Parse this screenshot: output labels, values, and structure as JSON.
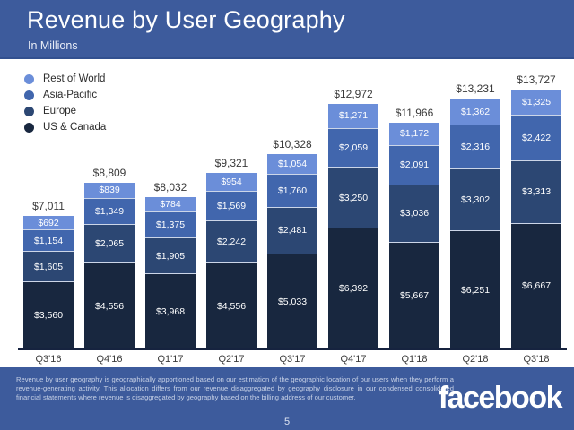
{
  "header": {
    "title": "Revenue by User Geography",
    "subtitle": "In Millions"
  },
  "legend": [
    {
      "label": "Rest of World",
      "color": "#6b8ed9"
    },
    {
      "label": "Asia-Pacific",
      "color": "#4166ad"
    },
    {
      "label": "Europe",
      "color": "#2c4773"
    },
    {
      "label": "US & Canada",
      "color": "#18273f"
    }
  ],
  "chart_data": {
    "type": "bar",
    "stacked": true,
    "title": "Revenue by User Geography",
    "subtitle": "In Millions",
    "unit": "USD millions",
    "value_prefix": "$",
    "grid": false,
    "legend_position": "top-left",
    "categories": [
      "Q3'16",
      "Q4'16",
      "Q1'17",
      "Q2'17",
      "Q3'17",
      "Q4'17",
      "Q1'18",
      "Q2'18",
      "Q3'18"
    ],
    "series": [
      {
        "name": "US & Canada",
        "color": "#18273f",
        "values": [
          3560,
          4556,
          3968,
          4556,
          5033,
          6392,
          5667,
          6251,
          6667
        ]
      },
      {
        "name": "Europe",
        "color": "#2c4773",
        "values": [
          1605,
          2065,
          1905,
          2242,
          2481,
          3250,
          3036,
          3302,
          3313
        ]
      },
      {
        "name": "Asia-Pacific",
        "color": "#4166ad",
        "values": [
          1154,
          1349,
          1375,
          1569,
          1760,
          2059,
          2091,
          2316,
          2422
        ]
      },
      {
        "name": "Rest of World",
        "color": "#6b8ed9",
        "values": [
          692,
          839,
          784,
          954,
          1054,
          1271,
          1172,
          1362,
          1325
        ]
      }
    ],
    "totals": [
      7011,
      8809,
      8032,
      9321,
      10328,
      12972,
      11966,
      13231,
      13727
    ],
    "ylim": [
      0,
      13727
    ]
  },
  "footer": {
    "note": "Revenue by user geography is geographically apportioned based on our estimation of the geographic location of our users when they perform a revenue-generating activity. This allocation differs from our revenue disaggregated by geography disclosure in our condensed consolidated financial statements where revenue is disaggregated by geography based on the billing address of our customer.",
    "page_number": "5",
    "logo_text": "facebook"
  },
  "colors": {
    "banner": "#3d5b9c",
    "axis": "#16233f",
    "total_label": "#3a3a3a"
  }
}
